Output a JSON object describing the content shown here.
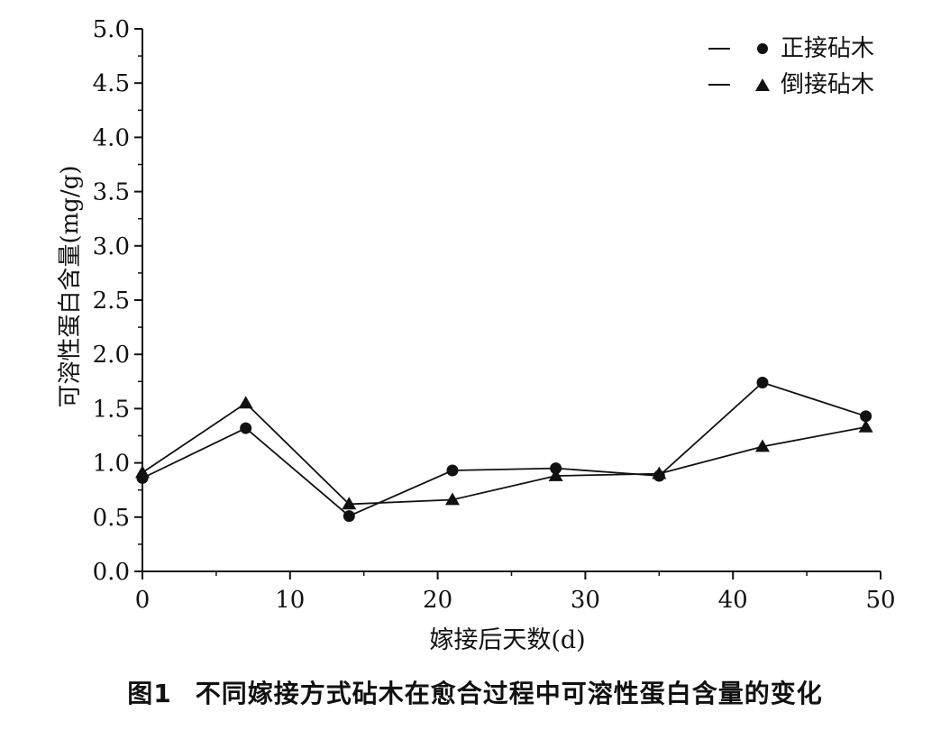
{
  "caption": {
    "number": "图1",
    "text": "不同嫁接方式砧木在愈合过程中可溶性蛋白含量的变化"
  },
  "chart_data": {
    "type": "line",
    "xlabel": "嫁接后天数(d)",
    "ylabel": "可溶性蛋白含量(mg/g)",
    "xlim": [
      0,
      50
    ],
    "ylim": [
      0,
      5.0
    ],
    "x_ticks": [
      0,
      10,
      20,
      30,
      40,
      50
    ],
    "y_ticks": [
      "0.0",
      "0.5",
      "1.0",
      "1.5",
      "2.0",
      "2.5",
      "3.0",
      "3.5",
      "4.0",
      "4.5",
      "5.0"
    ],
    "grid": false,
    "legend_position": "top-right",
    "series": [
      {
        "name": "正接砧木",
        "marker": "circle",
        "x": [
          0,
          7,
          14,
          21,
          28,
          35,
          42,
          49
        ],
        "y": [
          0.86,
          1.32,
          0.51,
          0.93,
          0.95,
          0.88,
          1.74,
          1.43
        ]
      },
      {
        "name": "倒接砧木",
        "marker": "triangle",
        "x": [
          0,
          7,
          14,
          21,
          28,
          35,
          42,
          49
        ],
        "y": [
          0.91,
          1.55,
          0.62,
          0.66,
          0.88,
          0.9,
          1.15,
          1.33
        ]
      }
    ]
  }
}
